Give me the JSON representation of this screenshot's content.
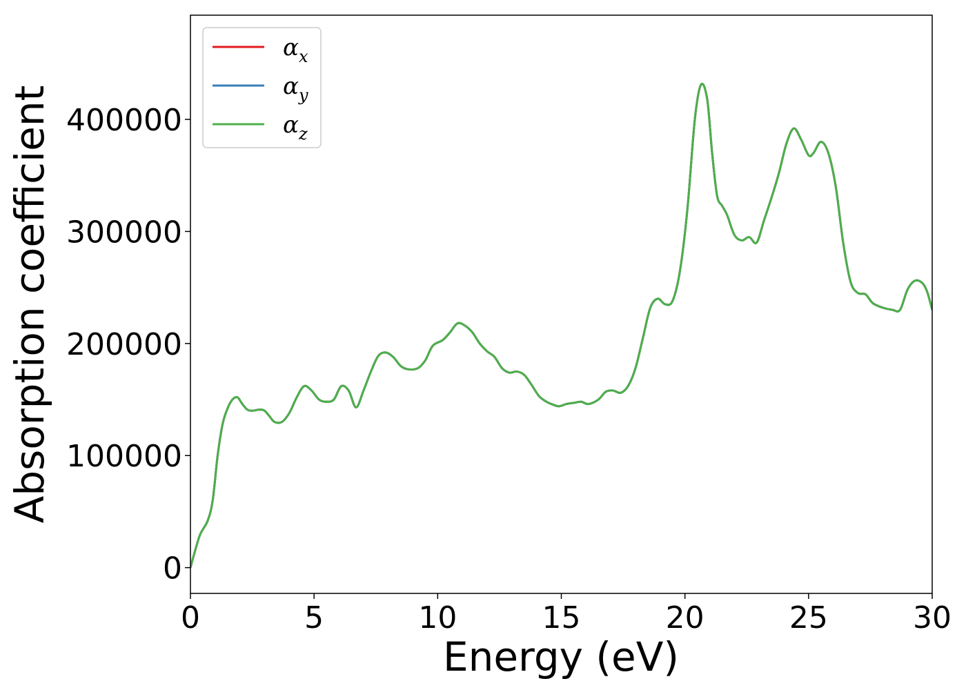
{
  "chart_data": {
    "type": "line",
    "xlabel": "Energy (eV)",
    "ylabel": "Absorption coefficient",
    "xlim": [
      0,
      30
    ],
    "ylim": [
      -23000,
      493000
    ],
    "xticks": [
      0,
      5,
      10,
      15,
      20,
      25,
      30
    ],
    "xtick_labels": [
      "0",
      "5",
      "10",
      "15",
      "20",
      "25",
      "30"
    ],
    "yticks": [
      0,
      100000,
      200000,
      300000,
      400000
    ],
    "ytick_labels": [
      "0",
      "100000",
      "200000",
      "300000",
      "400000"
    ],
    "grid": false,
    "legend_position": "upper-left",
    "series": [
      {
        "name": "α_x",
        "legend_base": "α",
        "legend_sub": "x",
        "color": "#e41a1c",
        "x": [
          0.0,
          0.2,
          0.4,
          0.7,
          0.9,
          1.1,
          1.3,
          1.5,
          1.7,
          1.9,
          2.1,
          2.3,
          2.5,
          2.8,
          3.0,
          3.2,
          3.4,
          3.7,
          4.0,
          4.3,
          4.6,
          4.9,
          5.2,
          5.5,
          5.8,
          6.1,
          6.4,
          6.7,
          7.0,
          7.3,
          7.6,
          7.9,
          8.2,
          8.5,
          8.8,
          9.2,
          9.5,
          9.8,
          10.2,
          10.5,
          10.8,
          11.1,
          11.4,
          11.7,
          12.0,
          12.3,
          12.6,
          12.9,
          13.2,
          13.5,
          13.8,
          14.1,
          14.4,
          14.6,
          14.9,
          15.2,
          15.5,
          15.8,
          16.1,
          16.5,
          16.8,
          17.1,
          17.4,
          17.7,
          18.0,
          18.3,
          18.6,
          18.9,
          19.2,
          19.5,
          19.8,
          20.1,
          20.4,
          20.65,
          20.9,
          21.1,
          21.3,
          21.5,
          21.7,
          22.0,
          22.3,
          22.6,
          22.9,
          23.2,
          23.5,
          23.8,
          24.1,
          24.4,
          24.7,
          25.0,
          25.2,
          25.5,
          25.8,
          26.1,
          26.4,
          26.7,
          27.0,
          27.3,
          27.6,
          28.0,
          28.4,
          28.7,
          29.0,
          29.3,
          29.6,
          29.8,
          30.0
        ],
        "y": [
          0,
          16000,
          30000,
          42000,
          60000,
          100000,
          128000,
          142000,
          150000,
          152000,
          146000,
          141000,
          140000,
          141000,
          140000,
          135000,
          130000,
          130000,
          138000,
          152000,
          162000,
          158000,
          150000,
          148000,
          150000,
          162000,
          158000,
          143000,
          158000,
          175000,
          189000,
          192000,
          188000,
          180000,
          177000,
          178000,
          185000,
          198000,
          203000,
          210000,
          218000,
          216000,
          210000,
          200000,
          193000,
          188000,
          178000,
          174000,
          175000,
          172000,
          163000,
          153000,
          148000,
          146000,
          144000,
          146000,
          147000,
          148000,
          146000,
          150000,
          157000,
          158000,
          156000,
          162000,
          178000,
          205000,
          232000,
          240000,
          235000,
          238000,
          265000,
          320000,
          400000,
          431000,
          418000,
          370000,
          332000,
          323000,
          315000,
          297000,
          292000,
          295000,
          290000,
          310000,
          330000,
          352000,
          378000,
          392000,
          382000,
          368000,
          370000,
          380000,
          370000,
          340000,
          290000,
          255000,
          245000,
          244000,
          236000,
          232000,
          230000,
          230000,
          248000,
          256000,
          254000,
          246000,
          230000
        ]
      },
      {
        "name": "α_y",
        "legend_base": "α",
        "legend_sub": "y",
        "color": "#377eb8",
        "same_as": "α_x"
      },
      {
        "name": "α_z",
        "legend_base": "α",
        "legend_sub": "z",
        "color": "#4daf4a",
        "same_as": "α_x"
      }
    ]
  }
}
